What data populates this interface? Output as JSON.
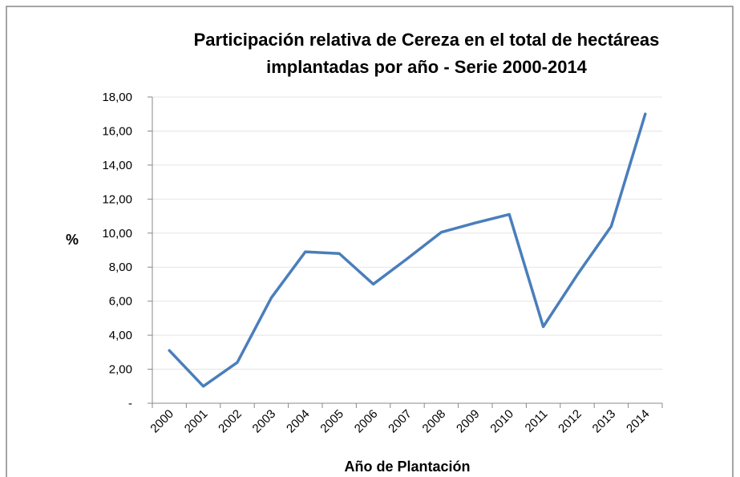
{
  "chart_data": {
    "type": "line",
    "title": [
      "Participación relativa de Cereza en el total de hectáreas",
      "implantadas por año - Serie 2000-2014"
    ],
    "x_label": "Año de Plantación",
    "y_label": "%",
    "categories": [
      "2000",
      "2001",
      "2002",
      "2003",
      "2004",
      "2005",
      "2006",
      "2007",
      "2008",
      "2009",
      "2010",
      "2011",
      "2012",
      "2013",
      "2014"
    ],
    "series": [
      {
        "color": "#4a7ebb",
        "values": [
          3.1,
          1.0,
          2.4,
          6.2,
          8.9,
          8.8,
          7.0,
          8.5,
          10.05,
          10.6,
          11.1,
          4.5,
          7.55,
          10.4,
          17.0
        ]
      }
    ],
    "ylim": [
      0,
      18
    ],
    "yticks": [
      {
        "value": 0,
        "label": "-"
      },
      {
        "value": 2,
        "label": "2,00"
      },
      {
        "value": 4,
        "label": "4,00"
      },
      {
        "value": 6,
        "label": "6,00"
      },
      {
        "value": 8,
        "label": "8,00"
      },
      {
        "value": 10,
        "label": "10,00"
      },
      {
        "value": 12,
        "label": "12,00"
      },
      {
        "value": 14,
        "label": "14,00"
      },
      {
        "value": 16,
        "label": "16,00"
      },
      {
        "value": 18,
        "label": "18,00"
      }
    ],
    "grid": true
  }
}
